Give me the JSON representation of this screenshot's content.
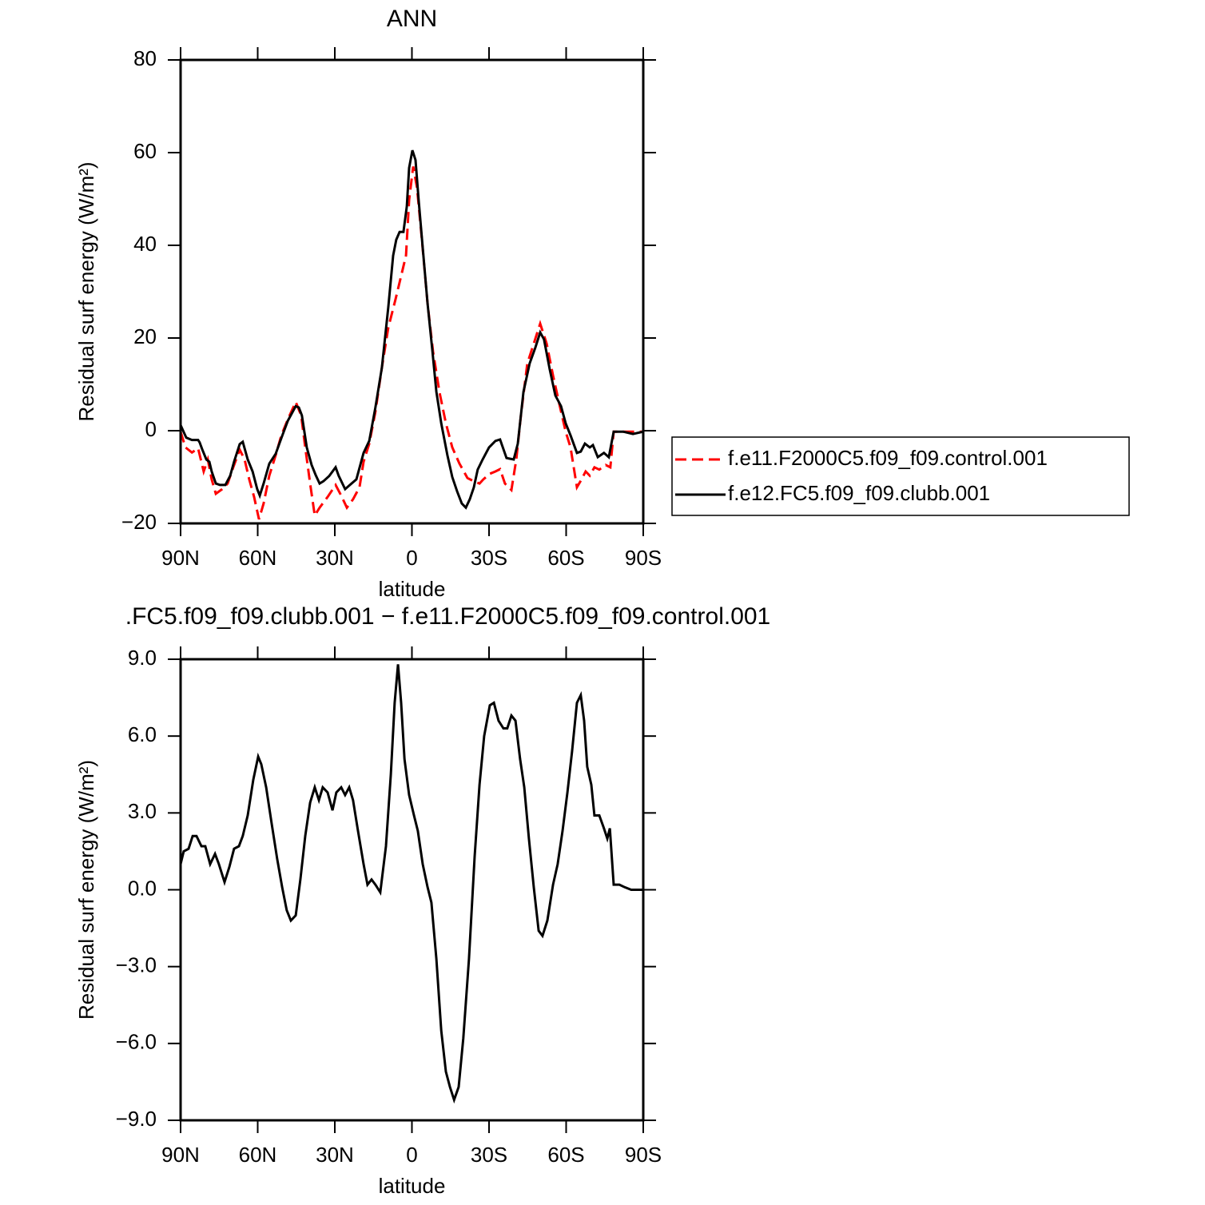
{
  "chart_data": [
    {
      "type": "line",
      "title": "ANN",
      "xlabel": "latitude",
      "ylabel": "Residual surf energy (W/m²)",
      "xlim": [
        90,
        -90
      ],
      "xticks": [
        {
          "value": 90,
          "label": "90N"
        },
        {
          "value": 60,
          "label": "60N"
        },
        {
          "value": 30,
          "label": "30N"
        },
        0,
        {
          "value": -30,
          "label": "30S"
        },
        {
          "value": -60,
          "label": "60S"
        },
        {
          "value": -90,
          "label": "90S"
        }
      ],
      "ylim": [
        -20,
        80
      ],
      "yticks": [
        {
          "value": -20,
          "label": "−20"
        },
        0,
        20,
        40,
        60,
        80
      ],
      "series": [
        {
          "name": "f.e11.F2000C5.f09_f09.control.001",
          "color": "#ff0000",
          "dashed": true,
          "x": [
            90,
            88.1,
            85.6,
            83.2,
            81,
            79.4,
            77.9,
            76.3,
            73.8,
            71.7,
            69.5,
            67,
            65.1,
            63.3,
            61.4,
            59.5,
            57.7,
            55.5,
            53,
            50.8,
            48.3,
            45.2,
            43.1,
            41.5,
            39.6,
            37.8,
            35.9,
            32.8,
            29.7,
            27.5,
            25.3,
            22.9,
            20.4,
            18.8,
            16.6,
            14.2,
            11.7,
            9.2,
            6.4,
            4.2,
            2.3,
            1.1,
            -0.5,
            -2,
            -3.9,
            -6.1,
            -8.2,
            -10.7,
            -13.2,
            -15.7,
            -18.5,
            -21.6,
            -24.4,
            -26.3,
            -27.8,
            -30.3,
            -32.5,
            -34.3,
            -36.2,
            -38.7,
            -40.6,
            -42.4,
            -44.9,
            -47.4,
            -49.9,
            -52.4,
            -54.9,
            -57.3,
            -59.8,
            -61.7,
            -64.2,
            -66,
            -67.6,
            -69.2,
            -71,
            -72.9,
            -75.4,
            -77.2,
            -78.5,
            -82.2,
            -90
          ],
          "values": [
            -0.2,
            -3.6,
            -4.7,
            -3.8,
            -8.8,
            -6.2,
            -10.5,
            -13.6,
            -12.6,
            -11.4,
            -7.9,
            -4.1,
            -6.2,
            -10.5,
            -14.3,
            -19.1,
            -15.7,
            -9.7,
            -5.3,
            -1,
            2.4,
            6.2,
            3.3,
            -3.6,
            -11.4,
            -18.3,
            -16.6,
            -14.3,
            -11.7,
            -14,
            -16.6,
            -14.8,
            -12.2,
            -6.7,
            -2.8,
            4.1,
            13.6,
            22.2,
            28.3,
            33.4,
            37.8,
            49.8,
            57,
            52.4,
            41.2,
            27.4,
            17.1,
            8.4,
            1.6,
            -3.6,
            -7.1,
            -10.2,
            -11,
            -11.4,
            -10.5,
            -9.3,
            -8.8,
            -8.3,
            -11.4,
            -12.8,
            -6.2,
            3.3,
            14.5,
            18.8,
            23.1,
            18.8,
            11.9,
            5.9,
            -0.2,
            -3.6,
            -12.2,
            -10.5,
            -8.8,
            -9.7,
            -7.9,
            -8.4,
            -7.4,
            -7.9,
            -0.2,
            -0.2,
            -0.2
          ]
        },
        {
          "name": "f.e12.FC5.f09_f09.clubb.001",
          "color": "#000000",
          "dashed": false,
          "x": [
            90,
            87.8,
            85.6,
            83.2,
            82.6,
            81.6,
            80,
            78.8,
            77.9,
            76.3,
            74.7,
            72.6,
            70.7,
            69.2,
            67,
            65.8,
            63.9,
            62,
            60.2,
            59.2,
            57.7,
            55.5,
            53,
            50.8,
            48.3,
            45.2,
            44,
            42.8,
            40.9,
            39,
            37.5,
            35.9,
            34.4,
            32.2,
            29.7,
            28.5,
            26,
            23.5,
            21.6,
            18.8,
            16.6,
            14.2,
            11.7,
            9.2,
            7.3,
            6.1,
            4.8,
            3.3,
            2,
            1.1,
            -0.2,
            -1.4,
            -2.6,
            -4.2,
            -6.1,
            -8,
            -9.5,
            -11.4,
            -13.8,
            -15.7,
            -17.6,
            -19.4,
            -21,
            -22.5,
            -24.1,
            -25.6,
            -27.5,
            -30,
            -32.5,
            -34.3,
            -36.8,
            -39.6,
            -41.2,
            -43.4,
            -45.8,
            -48,
            -49.9,
            -51.4,
            -53.6,
            -55.8,
            -58,
            -59.8,
            -61.7,
            -64.2,
            -65.7,
            -67.3,
            -69.2,
            -70.4,
            -72.3,
            -74.7,
            -76.6,
            -78.5,
            -82.2,
            -86,
            -90
          ],
          "values": [
            1.2,
            -1.5,
            -2,
            -2,
            -2.5,
            -4,
            -6.2,
            -6.7,
            -8.8,
            -11.4,
            -11.7,
            -11.7,
            -9.7,
            -6.7,
            -2.9,
            -2.4,
            -6.2,
            -8.8,
            -12.6,
            -14,
            -11.4,
            -7.1,
            -5,
            -1.6,
            2.1,
            5.3,
            5,
            3.3,
            -3.6,
            -7.4,
            -9.5,
            -11.4,
            -10.9,
            -9.8,
            -7.9,
            -9.7,
            -12.6,
            -11.4,
            -10.5,
            -4.8,
            -2.2,
            5,
            13.6,
            26.6,
            37.8,
            41.2,
            42.9,
            42.9,
            48.4,
            56.7,
            60.5,
            58.4,
            49.8,
            39.5,
            27.4,
            17.1,
            8.4,
            1.6,
            -5.3,
            -10,
            -13.1,
            -15.7,
            -16.6,
            -14.8,
            -12.2,
            -8.4,
            -6.2,
            -3.6,
            -2.2,
            -1.9,
            -5.9,
            -6.2,
            -2.8,
            8.4,
            14.5,
            17.9,
            21.2,
            19.7,
            13.3,
            7.6,
            5.3,
            1.6,
            -1,
            -4.8,
            -4.5,
            -2.8,
            -3.6,
            -3.1,
            -5.7,
            -4.8,
            -5.7,
            -0.2,
            -0.2,
            -0.7,
            -0.2
          ]
        }
      ]
    },
    {
      "type": "line",
      "title": ".FC5.f09_f09.clubb.001 − f.e11.F2000C5.f09_f09.control.001",
      "xlabel": "latitude",
      "ylabel": "Residual surf energy (W/m²)",
      "xlim": [
        90,
        -90
      ],
      "xticks": [
        {
          "value": 90,
          "label": "90N"
        },
        {
          "value": 60,
          "label": "60N"
        },
        {
          "value": 30,
          "label": "30N"
        },
        0,
        {
          "value": -30,
          "label": "30S"
        },
        {
          "value": -60,
          "label": "60S"
        },
        {
          "value": -90,
          "label": "90S"
        }
      ],
      "ylim": [
        -9,
        9
      ],
      "yticks": [
        {
          "value": -9,
          "label": "−9.0"
        },
        {
          "value": -6,
          "label": "−6.0"
        },
        {
          "value": -3,
          "label": "−3.0"
        },
        {
          "value": 0,
          "label": "0.0"
        },
        {
          "value": 3,
          "label": "3.0"
        },
        {
          "value": 6,
          "label": "6.0"
        },
        {
          "value": 9,
          "label": "9.0"
        }
      ],
      "series": [
        {
          "color": "#000000",
          "dashed": false,
          "x": [
            90,
            88.8,
            86.9,
            85.3,
            83.8,
            81.9,
            80.4,
            78.5,
            76.6,
            75.1,
            72.9,
            71,
            69.2,
            67.3,
            65.8,
            63.9,
            61.7,
            59.8,
            58.6,
            56.7,
            54.6,
            52.4,
            50.5,
            48.7,
            47.1,
            45.2,
            43.4,
            41.5,
            39.6,
            37.8,
            36.2,
            34.7,
            32.8,
            30.9,
            29.4,
            27.5,
            26,
            24.4,
            22.9,
            21,
            18.8,
            17.3,
            15.7,
            14.2,
            12.3,
            10.1,
            8.2,
            6.7,
            5.4,
            4.2,
            2.9,
            1.1,
            -0.8,
            -2.3,
            -4.2,
            -6.1,
            -7.6,
            -9.5,
            -11.4,
            -13.2,
            -14.8,
            -16.4,
            -18.2,
            -20,
            -22.2,
            -24.4,
            -26.3,
            -28.1,
            -30.3,
            -31.9,
            -33.7,
            -35.6,
            -37.1,
            -38.7,
            -40.3,
            -42.1,
            -43.7,
            -45.5,
            -47.4,
            -49.3,
            -50.8,
            -52.7,
            -54.9,
            -56.7,
            -58.6,
            -60.5,
            -62.3,
            -64.2,
            -65.7,
            -67,
            -68.2,
            -69.8,
            -71,
            -72.9,
            -74.7,
            -76,
            -77,
            -78.5,
            -80.7,
            -82.8,
            -85.3,
            -90
          ],
          "values": [
            1,
            1.5,
            1.6,
            2.1,
            2.1,
            1.7,
            1.7,
            1,
            1.4,
            1,
            0.3,
            0.9,
            1.6,
            1.7,
            2.1,
            2.9,
            4.3,
            5.2,
            4.9,
            4,
            2.6,
            1.2,
            0.1,
            -0.8,
            -1.2,
            -1,
            0.4,
            2.1,
            3.4,
            4,
            3.5,
            4,
            3.8,
            3.1,
            3.8,
            4,
            3.7,
            4,
            3.5,
            2.3,
            1,
            0.2,
            0.4,
            0.2,
            -0.1,
            1.7,
            4.5,
            7.3,
            8.8,
            7.3,
            5.1,
            3.7,
            2.9,
            2.3,
            1,
            0.1,
            -0.5,
            -2.7,
            -5.5,
            -7.1,
            -7.7,
            -8.2,
            -7.7,
            -5.8,
            -2.7,
            1.3,
            4.1,
            6,
            7.2,
            7.3,
            6.6,
            6.3,
            6.3,
            6.8,
            6.6,
            5.1,
            4,
            2,
            0.1,
            -1.6,
            -1.8,
            -1.2,
            0.2,
            1,
            2.3,
            3.8,
            5.4,
            7.3,
            7.6,
            6.6,
            4.8,
            4.1,
            2.9,
            2.9,
            2.4,
            2,
            2.4,
            0.2,
            0.2,
            0.1,
            0,
            0
          ]
        }
      ]
    }
  ]
}
